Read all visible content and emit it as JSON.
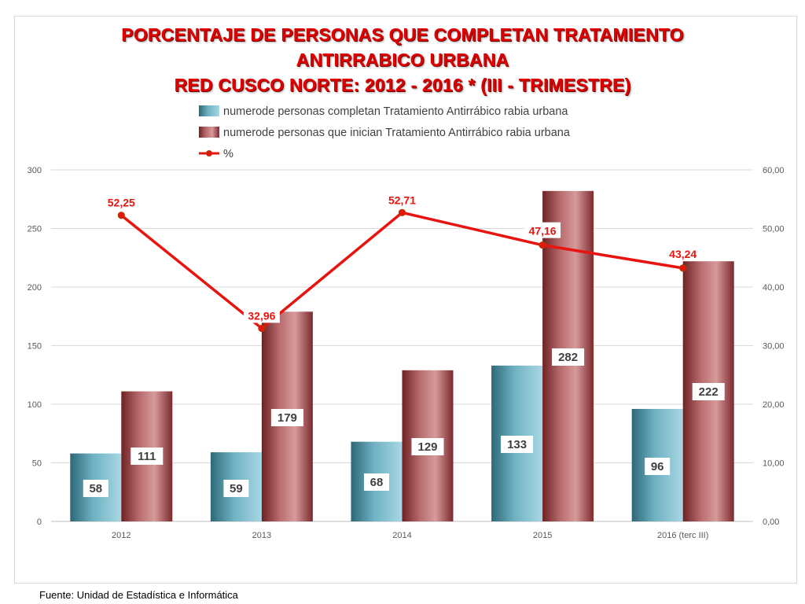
{
  "title": {
    "line1": "PORCENTAJE DE PERSONAS QUE COMPLETAN TRATAMIENTO",
    "line2": "ANTIRRABICO URBANA",
    "line3": "RED CUSCO NORTE: 2012 - 2016 * (III - TRIMESTRE)"
  },
  "footer": "Fuente: Unidad de Estadística e Informática",
  "chart_data": {
    "type": "bar",
    "categories": [
      "2012",
      "2013",
      "2014",
      "2015",
      "2016 (terc III)"
    ],
    "series": [
      {
        "name": "numerode personas completan Tratamiento Antirrábico rabia urbana",
        "type": "bar",
        "axis": "left",
        "values": [
          58,
          59,
          68,
          133,
          96
        ],
        "labels": [
          "58",
          "59",
          "68",
          "133",
          "96"
        ],
        "color": "#3f8597"
      },
      {
        "name": "numerode personas que inician  Tratamiento Antirrábico rabia urbana",
        "type": "bar",
        "axis": "left",
        "values": [
          111,
          179,
          129,
          282,
          222
        ],
        "labels": [
          "111",
          "179",
          "129",
          "282",
          "222"
        ],
        "color": "#a0484b"
      },
      {
        "name": "%",
        "type": "line",
        "axis": "right",
        "values": [
          52.25,
          32.96,
          52.71,
          47.16,
          43.24
        ],
        "labels": [
          "52,25",
          "32,96",
          "52,71",
          "47,16",
          "43,24"
        ],
        "color": "#e8140f"
      }
    ],
    "left_axis": {
      "ylim": [
        0,
        300
      ],
      "ticks": [
        "0",
        "50",
        "100",
        "150",
        "200",
        "250",
        "300"
      ],
      "tick_values": [
        0,
        50,
        100,
        150,
        200,
        250,
        300
      ]
    },
    "right_axis": {
      "ylim": [
        0,
        60
      ],
      "ticks": [
        "0,00",
        "10,00",
        "20,00",
        "30,00",
        "40,00",
        "50,00",
        "60,00"
      ],
      "tick_values": [
        0,
        10,
        20,
        30,
        40,
        50,
        60
      ]
    },
    "grid": true,
    "legend": "top"
  }
}
